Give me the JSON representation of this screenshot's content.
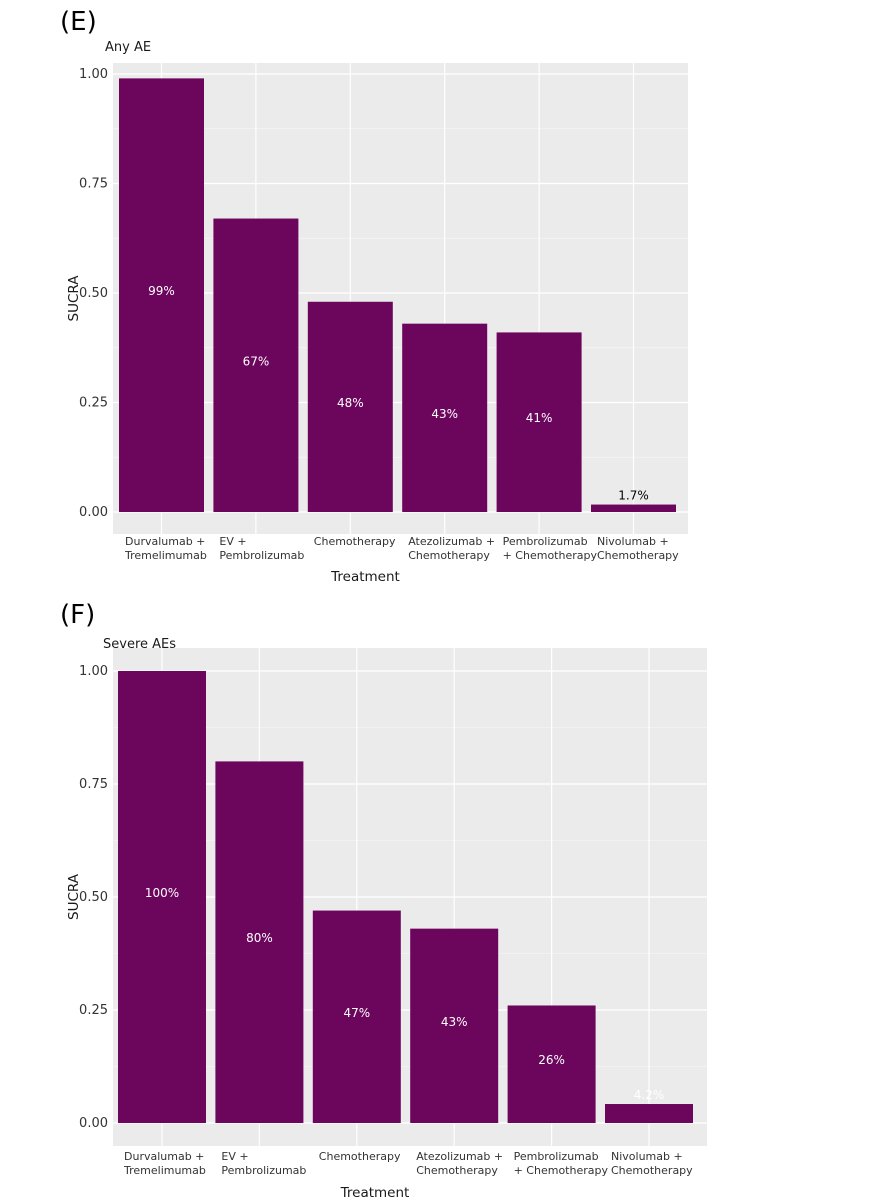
{
  "chart_data": [
    {
      "type": "bar",
      "panel_label": "(E)",
      "title": "Any AE",
      "xlabel": "Treatment",
      "ylabel": "SUCRA",
      "ylim": [
        0,
        1
      ],
      "yticks": [
        "0.00",
        "0.25",
        "0.50",
        "0.75",
        "1.00"
      ],
      "grid": true,
      "categories": [
        [
          "Durvalumab +",
          "Tremelimumab"
        ],
        [
          "EV +",
          "Pembrolizumab"
        ],
        [
          "Chemotherapy"
        ],
        [
          "Atezolizumab +",
          "Chemotherapy"
        ],
        [
          "Pembrolizumab",
          "+ Chemotherapy"
        ],
        [
          "Nivolumab +",
          "Chemotherapy"
        ]
      ],
      "values": [
        0.99,
        0.67,
        0.48,
        0.43,
        0.41,
        0.017
      ],
      "labels": [
        "99%",
        "67%",
        "48%",
        "43%",
        "41%",
        "1.7%"
      ],
      "bar_color": "#6b065c"
    },
    {
      "type": "bar",
      "panel_label": "(F)",
      "title": "Severe AEs",
      "xlabel": "Treatment",
      "ylabel": "SUCRA",
      "ylim": [
        0,
        1
      ],
      "yticks": [
        "0.00",
        "0.25",
        "0.50",
        "0.75",
        "1.00"
      ],
      "grid": true,
      "categories": [
        [
          "Durvalumab +",
          "Tremelimumab"
        ],
        [
          "EV +",
          "Pembrolizumab"
        ],
        [
          "Chemotherapy"
        ],
        [
          "Atezolizumab +",
          "Chemotherapy"
        ],
        [
          "Pembrolizumab",
          "+ Chemotherapy"
        ],
        [
          "Nivolumab +",
          "Chemotherapy"
        ]
      ],
      "values": [
        1.0,
        0.8,
        0.47,
        0.43,
        0.26,
        0.042
      ],
      "labels": [
        "100%",
        "80%",
        "47%",
        "43%",
        "26%",
        "4.2%"
      ],
      "bar_color": "#6b065c"
    }
  ]
}
